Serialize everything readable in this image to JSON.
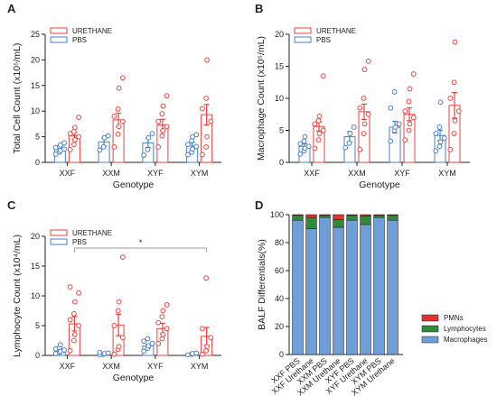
{
  "chart_data": [
    {
      "panel": "A",
      "type": "scatter",
      "ylabel": "Total Cell Count (x10⁵/mL)",
      "xlabel": "Genotype",
      "categories": [
        "XXF",
        "XXM",
        "XYF",
        "XYM"
      ],
      "ylim": [
        0,
        25
      ],
      "yticks": [
        0,
        5,
        10,
        15,
        20,
        25
      ],
      "legend": [
        "URETHANE",
        "PBS"
      ],
      "legend_position": "top-left",
      "colors": {
        "URETHANE": "#e8423f",
        "PBS": "#4a7fc1"
      },
      "series": [
        {
          "name": "PBS",
          "means": [
            2.7,
            4.0,
            3.8,
            3.2
          ],
          "sem": [
            0.4,
            0.8,
            0.9,
            0.7
          ],
          "points": [
            [
              1.6,
              2.0,
              2.3,
              2.6,
              2.9,
              3.1,
              3.4,
              3.8
            ],
            [
              2.4,
              3.0,
              4.8,
              5.2
            ],
            [
              1.4,
              2.5,
              4.8,
              5.6
            ],
            [
              1.5,
              2.0,
              2.6,
              3.1,
              3.5,
              4.2,
              5.0,
              5.4
            ]
          ]
        },
        {
          "name": "URETHANE",
          "means": [
            5.2,
            8.3,
            7.3,
            9.3
          ],
          "sem": [
            0.7,
            1.3,
            1.1,
            2.0
          ],
          "points": [
            [
              2.5,
              3.5,
              4.4,
              5.0,
              5.6,
              6.0,
              6.8,
              8.8
            ],
            [
              3.0,
              5.5,
              7.0,
              8.0,
              9.0,
              10.4,
              14.5,
              16.5
            ],
            [
              3.0,
              5.2,
              6.2,
              7.0,
              8.0,
              9.5,
              11.0,
              13.0
            ],
            [
              1.5,
              3.0,
              5.0,
              8.0,
              10.5,
              12.5,
              20.0
            ]
          ]
        }
      ]
    },
    {
      "panel": "B",
      "type": "scatter",
      "ylabel": "Macrophage Count (x10⁵/mL)",
      "xlabel": "Genotype",
      "categories": [
        "XXF",
        "XXM",
        "XYF",
        "XYM"
      ],
      "ylim": [
        0,
        20
      ],
      "yticks": [
        0,
        5,
        10,
        15,
        20
      ],
      "legend": [
        "URETHANE",
        "PBS"
      ],
      "legend_position": "top-left",
      "colors": {
        "URETHANE": "#e8423f",
        "PBS": "#4a7fc1"
      },
      "series": [
        {
          "name": "PBS",
          "means": [
            2.5,
            4.0,
            5.5,
            4.2
          ],
          "sem": [
            0.4,
            0.8,
            0.9,
            0.8
          ],
          "points": [
            [
              1.3,
              1.8,
              2.2,
              2.5,
              2.9,
              3.3,
              4.0
            ],
            [
              2.3,
              3.0,
              4.5,
              5.5
            ],
            [
              3.3,
              5.0,
              5.5,
              6.0,
              8.5,
              11.0
            ],
            [
              1.8,
              2.5,
              3.2,
              3.8,
              4.5,
              5.5,
              9.4
            ]
          ]
        },
        {
          "name": "URETHANE",
          "means": [
            5.6,
            7.9,
            7.5,
            8.9
          ],
          "sem": [
            0.7,
            1.2,
            1.0,
            2.0
          ],
          "points": [
            [
              2.2,
              3.5,
              4.5,
              5.0,
              6.0,
              6.5,
              7.2,
              13.5
            ],
            [
              2.0,
              4.5,
              6.0,
              7.5,
              8.5,
              10.0,
              14.5,
              15.8
            ],
            [
              3.5,
              5.0,
              6.0,
              7.0,
              8.0,
              9.5,
              11.5,
              13.8
            ],
            [
              2.0,
              4.5,
              6.5,
              8.0,
              10.0,
              12.5,
              18.8
            ]
          ]
        }
      ]
    },
    {
      "panel": "C",
      "type": "scatter",
      "ylabel": "Lymphocyte Count (x10⁴/mL)",
      "xlabel": "Genotype",
      "categories": [
        "XXF",
        "XXM",
        "XYF",
        "XYM"
      ],
      "ylim": [
        0,
        20
      ],
      "yticks": [
        0,
        5,
        10,
        15,
        20
      ],
      "legend": [
        "URETHANE",
        "PBS"
      ],
      "legend_position": "top-left",
      "colors": {
        "URETHANE": "#e8423f",
        "PBS": "#4a7fc1"
      },
      "annotation": "*",
      "series": [
        {
          "name": "PBS",
          "means": [
            0.9,
            0.3,
            1.6,
            0.2
          ],
          "sem": [
            0.2,
            0.1,
            0.3,
            0.1
          ],
          "points": [
            [
              0.3,
              0.5,
              0.7,
              0.9,
              1.1,
              1.3,
              1.8
            ],
            [
              0.1,
              0.2,
              0.3,
              0.4,
              0.5
            ],
            [
              0.7,
              1.2,
              1.6,
              2.0,
              2.4,
              2.8
            ],
            [
              0.1,
              0.2,
              0.3,
              0.4
            ]
          ]
        },
        {
          "name": "URETHANE",
          "means": [
            5.3,
            5.1,
            4.5,
            3.2
          ],
          "sem": [
            1.2,
            1.8,
            0.9,
            1.5
          ],
          "points": [
            [
              0.8,
              2.5,
              3.5,
              5.0,
              6.0,
              7.0,
              9.0,
              10.5,
              11.5
            ],
            [
              0.2,
              1.0,
              1.5,
              3.0,
              5.0,
              7.5,
              9.0,
              16.5
            ],
            [
              2.0,
              2.8,
              3.5,
              4.5,
              5.5,
              6.5,
              7.5,
              8.5
            ],
            [
              0.2,
              0.8,
              1.5,
              3.0,
              4.5,
              13.0
            ]
          ]
        }
      ]
    },
    {
      "panel": "D",
      "type": "bar",
      "stacked": true,
      "ylabel": "BALF Differentials(%)",
      "categories": [
        "XXF PBS",
        "XXF Urethane",
        "XXM PBS",
        "XXM Urethane",
        "XYF PBS",
        "XYF Urethane",
        "XYM PBS",
        "XYM Urethane"
      ],
      "ylim": [
        0,
        100
      ],
      "yticks": [
        0,
        20,
        40,
        60,
        80,
        100
      ],
      "legend_position": "bottom-right",
      "series": [
        {
          "name": "Macrophages",
          "color": "#6f9fd8",
          "values": [
            96,
            90,
            98,
            91,
            96,
            93,
            98,
            96
          ]
        },
        {
          "name": "Lymphocytes",
          "color": "#2e8b3a",
          "values": [
            3.5,
            8,
            1.5,
            5.5,
            3.5,
            6,
            1.5,
            3.5
          ]
        },
        {
          "name": "PMNs",
          "color": "#e33232",
          "values": [
            0.5,
            2,
            0.5,
            3.5,
            0.5,
            1,
            0.5,
            0.5
          ]
        }
      ]
    }
  ]
}
